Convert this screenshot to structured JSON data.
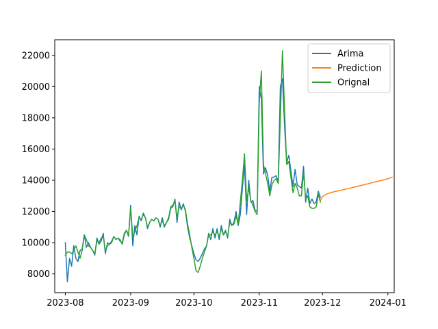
{
  "chart_data": {
    "type": "line",
    "title": "",
    "xlabel": "",
    "ylabel": "",
    "x_type": "date",
    "xlim": [
      "2023-07-27",
      "2024-01-04"
    ],
    "ylim": [
      6800,
      23000
    ],
    "grid": false,
    "legend_position": "top-right",
    "x_ticks": [
      "2023-08-01",
      "2023-09-01",
      "2023-10-01",
      "2023-11-01",
      "2023-12-01",
      "2024-01-01"
    ],
    "x_tick_labels": [
      "2023-08",
      "2023-09",
      "2023-10",
      "2023-11",
      "2023-12",
      "2024-01"
    ],
    "y_ticks": [
      8000,
      10000,
      12000,
      14000,
      16000,
      18000,
      20000,
      22000
    ],
    "y_tick_labels": [
      "8000",
      "10000",
      "12000",
      "14000",
      "16000",
      "18000",
      "20000",
      "22000"
    ],
    "series": [
      {
        "name": "Arima",
        "color": "#1f77b4",
        "points": [
          [
            "2023-08-01",
            10000
          ],
          [
            "2023-08-02",
            7500
          ],
          [
            "2023-08-03",
            9000
          ],
          [
            "2023-08-04",
            8500
          ],
          [
            "2023-08-05",
            9800
          ],
          [
            "2023-08-06",
            9000
          ],
          [
            "2023-08-07",
            8800
          ],
          [
            "2023-08-08",
            9500
          ],
          [
            "2023-08-09",
            9600
          ],
          [
            "2023-08-10",
            10500
          ],
          [
            "2023-08-11",
            9700
          ],
          [
            "2023-08-12",
            10000
          ],
          [
            "2023-08-13",
            9700
          ],
          [
            "2023-08-14",
            9500
          ],
          [
            "2023-08-15",
            9200
          ],
          [
            "2023-08-16",
            10300
          ],
          [
            "2023-08-17",
            9900
          ],
          [
            "2023-08-18",
            10100
          ],
          [
            "2023-08-19",
            10600
          ],
          [
            "2023-08-20",
            9300
          ],
          [
            "2023-08-21",
            10000
          ],
          [
            "2023-08-22",
            9900
          ],
          [
            "2023-08-23",
            10100
          ],
          [
            "2023-08-24",
            10400
          ],
          [
            "2023-08-25",
            10200
          ],
          [
            "2023-08-26",
            10300
          ],
          [
            "2023-08-27",
            10100
          ],
          [
            "2023-08-28",
            10000
          ],
          [
            "2023-08-29",
            10600
          ],
          [
            "2023-08-30",
            10800
          ],
          [
            "2023-08-31",
            10400
          ],
          [
            "2023-09-01",
            12400
          ],
          [
            "2023-09-02",
            9800
          ],
          [
            "2023-09-03",
            11100
          ],
          [
            "2023-09-04",
            10500
          ],
          [
            "2023-09-05",
            11700
          ],
          [
            "2023-09-06",
            11400
          ],
          [
            "2023-09-07",
            11900
          ],
          [
            "2023-09-08",
            11600
          ],
          [
            "2023-09-09",
            10900
          ],
          [
            "2023-09-10",
            11300
          ],
          [
            "2023-09-11",
            11500
          ],
          [
            "2023-09-12",
            11400
          ],
          [
            "2023-09-13",
            11600
          ],
          [
            "2023-09-14",
            11500
          ],
          [
            "2023-09-15",
            11000
          ],
          [
            "2023-09-16",
            11600
          ],
          [
            "2023-09-17",
            11000
          ],
          [
            "2023-09-18",
            11300
          ],
          [
            "2023-09-19",
            11500
          ],
          [
            "2023-09-20",
            12200
          ],
          [
            "2023-09-21",
            12300
          ],
          [
            "2023-09-22",
            12800
          ],
          [
            "2023-09-23",
            11300
          ],
          [
            "2023-09-24",
            12600
          ],
          [
            "2023-09-25",
            12100
          ],
          [
            "2023-09-26",
            12500
          ],
          [
            "2023-09-27",
            12000
          ],
          [
            "2023-09-28",
            11000
          ],
          [
            "2023-09-29",
            10300
          ],
          [
            "2023-09-30",
            9800
          ],
          [
            "2023-10-01",
            9300
          ],
          [
            "2023-10-02",
            8900
          ],
          [
            "2023-10-03",
            8800
          ],
          [
            "2023-10-04",
            9000
          ],
          [
            "2023-10-05",
            9300
          ],
          [
            "2023-10-06",
            9600
          ],
          [
            "2023-10-07",
            9800
          ],
          [
            "2023-10-08",
            10600
          ],
          [
            "2023-10-09",
            10200
          ],
          [
            "2023-10-10",
            10900
          ],
          [
            "2023-10-11",
            10300
          ],
          [
            "2023-10-12",
            10900
          ],
          [
            "2023-10-13",
            10200
          ],
          [
            "2023-10-14",
            11100
          ],
          [
            "2023-10-15",
            10500
          ],
          [
            "2023-10-16",
            10800
          ],
          [
            "2023-10-17",
            10300
          ],
          [
            "2023-10-18",
            11500
          ],
          [
            "2023-10-19",
            11100
          ],
          [
            "2023-10-20",
            11300
          ],
          [
            "2023-10-21",
            12000
          ],
          [
            "2023-10-22",
            11100
          ],
          [
            "2023-10-23",
            11800
          ],
          [
            "2023-10-24",
            13500
          ],
          [
            "2023-10-25",
            15000
          ],
          [
            "2023-10-26",
            11800
          ],
          [
            "2023-10-27",
            14000
          ],
          [
            "2023-10-28",
            12600
          ],
          [
            "2023-10-29",
            12700
          ],
          [
            "2023-10-30",
            12100
          ],
          [
            "2023-10-31",
            12000
          ],
          [
            "2023-11-01",
            20000
          ],
          [
            "2023-11-02",
            19200
          ],
          [
            "2023-11-03",
            14400
          ],
          [
            "2023-11-04",
            14800
          ],
          [
            "2023-11-05",
            14300
          ],
          [
            "2023-11-06",
            13300
          ],
          [
            "2023-11-07",
            14200
          ],
          [
            "2023-11-08",
            14200
          ],
          [
            "2023-11-09",
            14300
          ],
          [
            "2023-11-10",
            13900
          ],
          [
            "2023-11-11",
            20000
          ],
          [
            "2023-11-12",
            20500
          ],
          [
            "2023-11-13",
            17500
          ],
          [
            "2023-11-14",
            15100
          ],
          [
            "2023-11-15",
            15600
          ],
          [
            "2023-11-16",
            14600
          ],
          [
            "2023-11-17",
            13600
          ],
          [
            "2023-11-18",
            14700
          ],
          [
            "2023-11-19",
            13700
          ],
          [
            "2023-11-20",
            13600
          ],
          [
            "2023-11-21",
            13500
          ],
          [
            "2023-11-22",
            14900
          ],
          [
            "2023-11-23",
            12600
          ],
          [
            "2023-11-24",
            13500
          ],
          [
            "2023-11-25",
            12500
          ],
          [
            "2023-11-26",
            12800
          ],
          [
            "2023-11-27",
            12500
          ],
          [
            "2023-11-28",
            12600
          ],
          [
            "2023-11-29",
            13300
          ],
          [
            "2023-11-30",
            12900
          ]
        ]
      },
      {
        "name": "Prediction",
        "color": "#ff7f0e",
        "points": [
          [
            "2023-11-30",
            12700
          ],
          [
            "2023-12-01",
            12950
          ],
          [
            "2023-12-02",
            13050
          ],
          [
            "2023-12-03",
            13120
          ],
          [
            "2023-12-04",
            13170
          ],
          [
            "2023-12-05",
            13210
          ],
          [
            "2023-12-07",
            13280
          ],
          [
            "2023-12-10",
            13370
          ],
          [
            "2023-12-13",
            13460
          ],
          [
            "2023-12-16",
            13560
          ],
          [
            "2023-12-19",
            13660
          ],
          [
            "2023-12-22",
            13760
          ],
          [
            "2023-12-25",
            13860
          ],
          [
            "2023-12-28",
            13960
          ],
          [
            "2023-12-31",
            14060
          ],
          [
            "2024-01-01",
            14100
          ],
          [
            "2024-01-03",
            14200
          ]
        ]
      },
      {
        "name": "Orignal",
        "color": "#2ca02c",
        "points": [
          [
            "2023-08-01",
            9200
          ],
          [
            "2023-08-02",
            9400
          ],
          [
            "2023-08-03",
            9400
          ],
          [
            "2023-08-04",
            9300
          ],
          [
            "2023-08-05",
            9500
          ],
          [
            "2023-08-06",
            9800
          ],
          [
            "2023-08-07",
            9400
          ],
          [
            "2023-08-08",
            9000
          ],
          [
            "2023-08-09",
            9500
          ],
          [
            "2023-08-10",
            10500
          ],
          [
            "2023-08-11",
            10200
          ],
          [
            "2023-08-12",
            9800
          ],
          [
            "2023-08-13",
            9700
          ],
          [
            "2023-08-14",
            9500
          ],
          [
            "2023-08-15",
            9300
          ],
          [
            "2023-08-16",
            10100
          ],
          [
            "2023-08-17",
            10000
          ],
          [
            "2023-08-18",
            10300
          ],
          [
            "2023-08-19",
            10400
          ],
          [
            "2023-08-20",
            9500
          ],
          [
            "2023-08-21",
            9800
          ],
          [
            "2023-08-22",
            9900
          ],
          [
            "2023-08-23",
            10000
          ],
          [
            "2023-08-24",
            10400
          ],
          [
            "2023-08-25",
            10200
          ],
          [
            "2023-08-26",
            10300
          ],
          [
            "2023-08-27",
            10200
          ],
          [
            "2023-08-28",
            9900
          ],
          [
            "2023-08-29",
            10500
          ],
          [
            "2023-08-30",
            10800
          ],
          [
            "2023-08-31",
            10500
          ],
          [
            "2023-09-01",
            12200
          ],
          [
            "2023-09-02",
            10400
          ],
          [
            "2023-09-03",
            10700
          ],
          [
            "2023-09-04",
            11100
          ],
          [
            "2023-09-05",
            11600
          ],
          [
            "2023-09-06",
            11500
          ],
          [
            "2023-09-07",
            11800
          ],
          [
            "2023-09-08",
            11600
          ],
          [
            "2023-09-09",
            11000
          ],
          [
            "2023-09-10",
            11300
          ],
          [
            "2023-09-11",
            11500
          ],
          [
            "2023-09-12",
            11400
          ],
          [
            "2023-09-13",
            11600
          ],
          [
            "2023-09-14",
            11500
          ],
          [
            "2023-09-15",
            11100
          ],
          [
            "2023-09-16",
            11400
          ],
          [
            "2023-09-17",
            11100
          ],
          [
            "2023-09-18",
            11300
          ],
          [
            "2023-09-19",
            11600
          ],
          [
            "2023-09-20",
            12300
          ],
          [
            "2023-09-21",
            12400
          ],
          [
            "2023-09-22",
            12700
          ],
          [
            "2023-09-23",
            11600
          ],
          [
            "2023-09-24",
            12300
          ],
          [
            "2023-09-25",
            12200
          ],
          [
            "2023-09-26",
            12400
          ],
          [
            "2023-09-27",
            12100
          ],
          [
            "2023-09-28",
            11200
          ],
          [
            "2023-09-29",
            10500
          ],
          [
            "2023-09-30",
            9700
          ],
          [
            "2023-10-01",
            9000
          ],
          [
            "2023-10-02",
            8200
          ],
          [
            "2023-10-03",
            8100
          ],
          [
            "2023-10-04",
            8500
          ],
          [
            "2023-10-05",
            9000
          ],
          [
            "2023-10-06",
            9400
          ],
          [
            "2023-10-07",
            9800
          ],
          [
            "2023-10-08",
            10500
          ],
          [
            "2023-10-09",
            10500
          ],
          [
            "2023-10-10",
            10700
          ],
          [
            "2023-10-11",
            10500
          ],
          [
            "2023-10-12",
            10700
          ],
          [
            "2023-10-13",
            10400
          ],
          [
            "2023-10-14",
            10900
          ],
          [
            "2023-10-15",
            10500
          ],
          [
            "2023-10-16",
            10700
          ],
          [
            "2023-10-17",
            10400
          ],
          [
            "2023-10-18",
            11300
          ],
          [
            "2023-10-19",
            11100
          ],
          [
            "2023-10-20",
            11200
          ],
          [
            "2023-10-21",
            11700
          ],
          [
            "2023-10-22",
            11200
          ],
          [
            "2023-10-23",
            12600
          ],
          [
            "2023-10-24",
            14000
          ],
          [
            "2023-10-25",
            15700
          ],
          [
            "2023-10-26",
            12700
          ],
          [
            "2023-10-27",
            13500
          ],
          [
            "2023-10-28",
            12700
          ],
          [
            "2023-10-29",
            12400
          ],
          [
            "2023-10-30",
            12000
          ],
          [
            "2023-10-31",
            11800
          ],
          [
            "2023-11-01",
            19000
          ],
          [
            "2023-11-02",
            21000
          ],
          [
            "2023-11-03",
            15000
          ],
          [
            "2023-11-04",
            14400
          ],
          [
            "2023-11-05",
            13800
          ],
          [
            "2023-11-06",
            13000
          ],
          [
            "2023-11-07",
            13700
          ],
          [
            "2023-11-08",
            14000
          ],
          [
            "2023-11-09",
            14100
          ],
          [
            "2023-11-10",
            13800
          ],
          [
            "2023-11-11",
            18000
          ],
          [
            "2023-11-12",
            22300
          ],
          [
            "2023-11-13",
            18500
          ],
          [
            "2023-11-14",
            15000
          ],
          [
            "2023-11-15",
            15200
          ],
          [
            "2023-11-16",
            14200
          ],
          [
            "2023-11-17",
            13200
          ],
          [
            "2023-11-18",
            13800
          ],
          [
            "2023-11-19",
            13500
          ],
          [
            "2023-11-20",
            13000
          ],
          [
            "2023-11-21",
            13000
          ],
          [
            "2023-11-22",
            14500
          ],
          [
            "2023-11-23",
            12800
          ],
          [
            "2023-11-24",
            13000
          ],
          [
            "2023-11-25",
            12300
          ],
          [
            "2023-11-26",
            12200
          ],
          [
            "2023-11-27",
            12200
          ],
          [
            "2023-11-28",
            12300
          ],
          [
            "2023-11-29",
            13100
          ],
          [
            "2023-11-30",
            12600
          ]
        ]
      }
    ]
  }
}
